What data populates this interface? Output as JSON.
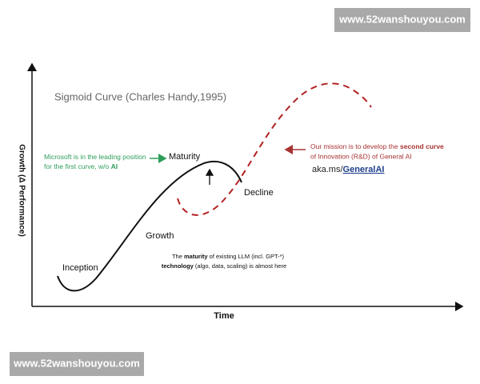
{
  "watermarks": {
    "top": "www.52wanshouyou.com",
    "bottom": "www.52wanshouyou.com"
  },
  "title": "Sigmoid Curve (Charles Handy,1995)",
  "axes": {
    "y_label": "Growth (Δ Performance)",
    "x_label": "Time"
  },
  "stages": {
    "inception": "Inception",
    "growth": "Growth",
    "maturity": "Maturity",
    "decline": "Decline"
  },
  "left_note": {
    "line1": "Microsoft is in the leading position",
    "line2": "for the first curve, w/o ",
    "line2_bold": "AI"
  },
  "right_note": {
    "line1": "Our mission is to develop the ",
    "line1_bold": "second curve",
    "line2": "of Innovation (R&D) of General AI",
    "link_prefix": "aka.ms/",
    "link": "GeneralAI"
  },
  "bottom_note": {
    "line1_pre": "The ",
    "line1_bold": "maturity",
    "line1_post": " of existing LLM (incl. GPT-*)",
    "line2_bold": "technology",
    "line2_post": " (algo, data, scaling) is almost here"
  }
}
